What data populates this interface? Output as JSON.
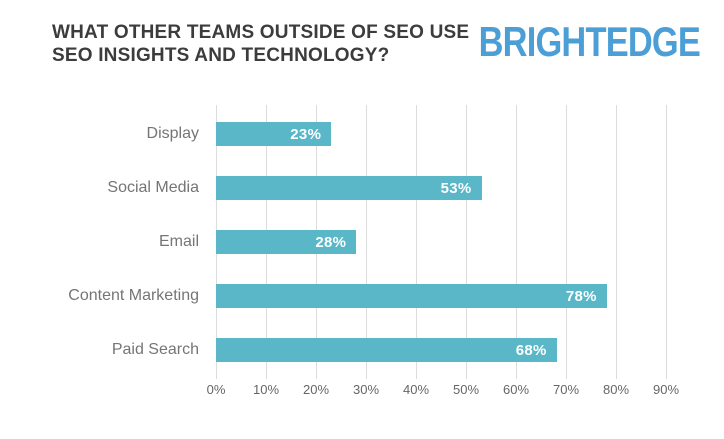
{
  "header": {
    "title_line1": "WHAT OTHER TEAMS OUTSIDE OF SEO USE",
    "title_line2": "SEO INSIGHTS AND TECHNOLOGY?",
    "logo_text": "BRIGHTEDGE"
  },
  "colors": {
    "bar": "#59B7C8",
    "logo_blue": "#4C9FD6",
    "title_text": "#3C3C3C",
    "category_label": "#757575",
    "axis_label": "#666666",
    "gridline": "#DCDCDC",
    "bar_value_label": "#FFFFFF",
    "background": "#FFFFFF"
  },
  "chart_data": {
    "type": "bar",
    "orientation": "horizontal",
    "title": "WHAT OTHER TEAMS OUTSIDE OF SEO USE SEO INSIGHTS AND TECHNOLOGY?",
    "categories": [
      "Display",
      "Social Media",
      "Email",
      "Content Marketing",
      "Paid Search"
    ],
    "values": [
      23,
      53,
      28,
      78,
      68
    ],
    "value_labels": [
      "23%",
      "53%",
      "28%",
      "78%",
      "68%"
    ],
    "xlabel": "",
    "ylabel": "",
    "x_ticks": [
      "0%",
      "10%",
      "20%",
      "30%",
      "40%",
      "50%",
      "60%",
      "70%",
      "80%",
      "90%"
    ],
    "xlim": [
      0,
      90
    ],
    "grid": "vertical",
    "legend": "none"
  }
}
